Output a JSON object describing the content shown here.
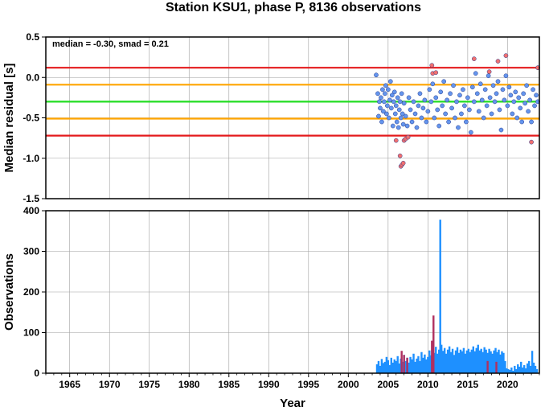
{
  "chart_data": [
    {
      "type": "scatter",
      "title": "Station KSU1, phase P, 8136 observations",
      "ylabel": "Median residual [s]",
      "annotation": "median = -0.30, smad = 0.21",
      "xlim": [
        1962,
        2024
      ],
      "ylim": [
        -1.5,
        0.5
      ],
      "yticks": [
        0.5,
        0.0,
        -0.5,
        -1.0,
        -1.5
      ],
      "ytick_labels": [
        "0.5",
        "0.0",
        "-0.5",
        "-1.0",
        "-1.5"
      ],
      "grid": true,
      "reference_lines": [
        {
          "y": 0.12,
          "color": "#e41a1c"
        },
        {
          "y": -0.09,
          "color": "#ffa500"
        },
        {
          "y": -0.3,
          "color": "#22dd22"
        },
        {
          "y": -0.51,
          "color": "#ffa500"
        },
        {
          "y": -0.72,
          "color": "#e41a1c"
        }
      ],
      "series": [
        {
          "color": "#6495ed",
          "points": [
            [
              2003.5,
              0.03
            ],
            [
              2003.7,
              -0.2
            ],
            [
              2003.8,
              -0.48
            ],
            [
              2003.9,
              -0.3
            ],
            [
              2004.0,
              -0.38
            ],
            [
              2004.1,
              -0.25
            ],
            [
              2004.2,
              -0.55
            ],
            [
              2004.3,
              -0.15
            ],
            [
              2004.4,
              -0.42
            ],
            [
              2004.5,
              -0.3
            ],
            [
              2004.6,
              -0.2
            ],
            [
              2004.7,
              -0.1
            ],
            [
              2004.8,
              -0.45
            ],
            [
              2004.9,
              -0.35
            ],
            [
              2005.0,
              -0.15
            ],
            [
              2005.1,
              -0.5
            ],
            [
              2005.2,
              -0.28
            ],
            [
              2005.3,
              -0.05
            ],
            [
              2005.4,
              -0.38
            ],
            [
              2005.5,
              -0.22
            ],
            [
              2005.6,
              -0.6
            ],
            [
              2005.7,
              -0.3
            ],
            [
              2005.8,
              -0.18
            ],
            [
              2005.9,
              -0.45
            ],
            [
              2006.0,
              -0.35
            ],
            [
              2006.1,
              -0.55
            ],
            [
              2006.2,
              -0.25
            ],
            [
              2006.3,
              -0.62
            ],
            [
              2006.4,
              -0.4
            ],
            [
              2006.5,
              -0.3
            ],
            [
              2006.6,
              -0.5
            ],
            [
              2006.7,
              -0.2
            ],
            [
              2006.8,
              -0.45
            ],
            [
              2006.9,
              -0.58
            ],
            [
              2007.0,
              -0.32
            ],
            [
              2007.2,
              -0.48
            ],
            [
              2007.4,
              -0.6
            ],
            [
              2007.6,
              -0.25
            ],
            [
              2007.8,
              -0.4
            ],
            [
              2008.0,
              -0.55
            ],
            [
              2008.2,
              -0.3
            ],
            [
              2008.4,
              -0.45
            ],
            [
              2008.6,
              -0.62
            ],
            [
              2008.8,
              -0.35
            ],
            [
              2009.0,
              -0.2
            ],
            [
              2009.2,
              -0.5
            ],
            [
              2009.4,
              -0.38
            ],
            [
              2009.6,
              -0.28
            ],
            [
              2009.8,
              -0.55
            ],
            [
              2010.0,
              -0.42
            ],
            [
              2010.2,
              -0.15
            ],
            [
              2010.4,
              -0.3
            ],
            [
              2010.6,
              -0.08
            ],
            [
              2010.8,
              -0.5
            ],
            [
              2011.0,
              -0.25
            ],
            [
              2011.2,
              -0.4
            ],
            [
              2011.4,
              -0.6
            ],
            [
              2011.6,
              -0.18
            ],
            [
              2011.8,
              -0.35
            ],
            [
              2012.0,
              -0.05
            ],
            [
              2012.2,
              -0.45
            ],
            [
              2012.4,
              -0.28
            ],
            [
              2012.6,
              -0.55
            ],
            [
              2012.8,
              -0.2
            ],
            [
              2013.0,
              -0.38
            ],
            [
              2013.2,
              -0.1
            ],
            [
              2013.4,
              -0.5
            ],
            [
              2013.6,
              -0.3
            ],
            [
              2013.8,
              -0.62
            ],
            [
              2014.0,
              -0.22
            ],
            [
              2014.2,
              -0.45
            ],
            [
              2014.4,
              -0.15
            ],
            [
              2014.6,
              -0.35
            ],
            [
              2014.8,
              -0.55
            ],
            [
              2015.0,
              -0.25
            ],
            [
              2015.2,
              -0.4
            ],
            [
              2015.4,
              -0.68
            ],
            [
              2015.6,
              -0.12
            ],
            [
              2015.8,
              -0.3
            ],
            [
              2016.0,
              0.05
            ],
            [
              2016.2,
              -0.2
            ],
            [
              2016.4,
              -0.42
            ],
            [
              2016.6,
              -0.08
            ],
            [
              2016.8,
              -0.28
            ],
            [
              2017.0,
              -0.5
            ],
            [
              2017.2,
              -0.15
            ],
            [
              2017.4,
              -0.35
            ],
            [
              2017.6,
              0.02
            ],
            [
              2017.8,
              -0.25
            ],
            [
              2018.0,
              -0.45
            ],
            [
              2018.2,
              -0.1
            ],
            [
              2018.4,
              -0.3
            ],
            [
              2018.6,
              -0.2
            ],
            [
              2018.8,
              -0.05
            ],
            [
              2019.0,
              -0.4
            ],
            [
              2019.2,
              -0.65
            ],
            [
              2019.4,
              -0.15
            ],
            [
              2019.6,
              -0.28
            ],
            [
              2019.8,
              0.02
            ],
            [
              2020.0,
              -0.35
            ],
            [
              2020.2,
              -0.12
            ],
            [
              2020.4,
              -0.22
            ],
            [
              2020.6,
              -0.45
            ],
            [
              2020.8,
              -0.3
            ],
            [
              2021.0,
              -0.18
            ],
            [
              2021.2,
              -0.5
            ],
            [
              2021.4,
              -0.25
            ],
            [
              2021.6,
              -0.38
            ],
            [
              2021.8,
              -0.55
            ],
            [
              2022.0,
              -0.2
            ],
            [
              2022.2,
              -0.32
            ],
            [
              2022.4,
              -0.1
            ],
            [
              2022.6,
              -0.42
            ],
            [
              2022.8,
              -0.28
            ],
            [
              2023.0,
              -0.55
            ],
            [
              2023.2,
              -0.15
            ],
            [
              2023.4,
              -0.35
            ],
            [
              2023.6,
              -0.22
            ],
            [
              2023.8,
              -0.3
            ]
          ]
        },
        {
          "color": "#f07070",
          "points": [
            [
              2006.0,
              -0.78
            ],
            [
              2006.5,
              -0.97
            ],
            [
              2006.6,
              -1.1
            ],
            [
              2006.75,
              -1.08
            ],
            [
              2006.9,
              -1.06
            ],
            [
              2007.0,
              -0.78
            ],
            [
              2007.2,
              -0.76
            ],
            [
              2007.5,
              -0.74
            ],
            [
              2010.5,
              0.15
            ],
            [
              2010.6,
              0.05
            ],
            [
              2011.0,
              0.06
            ],
            [
              2015.8,
              0.23
            ],
            [
              2017.7,
              0.07
            ],
            [
              2018.8,
              0.2
            ],
            [
              2019.8,
              0.27
            ],
            [
              2023.8,
              0.12
            ],
            [
              2023.0,
              -0.8
            ]
          ]
        }
      ]
    },
    {
      "type": "bar",
      "ylabel": "Observations",
      "xlabel": "Year",
      "xlim": [
        1962,
        2024
      ],
      "ylim": [
        0,
        400
      ],
      "yticks": [
        400,
        300,
        200,
        100,
        0
      ],
      "ytick_labels": [
        "400",
        "300",
        "200",
        "100",
        "0"
      ],
      "xticks": [
        1965,
        1970,
        1975,
        1980,
        1985,
        1990,
        1995,
        2000,
        2005,
        2010,
        2015,
        2020
      ],
      "xtick_labels": [
        "1965",
        "1970",
        "1975",
        "1980",
        "1985",
        "1990",
        "1995",
        "2000",
        "2005",
        "2010",
        "2015",
        "2020"
      ],
      "grid": true,
      "series": [
        {
          "color": "#1e90ff",
          "x": [
            2003.6,
            2003.8,
            2004.0,
            2004.2,
            2004.4,
            2004.6,
            2004.8,
            2005.0,
            2005.2,
            2005.4,
            2005.6,
            2005.8,
            2006.0,
            2006.2,
            2006.4,
            2006.6,
            2006.8,
            2007.0,
            2007.2,
            2007.4,
            2007.6,
            2007.8,
            2008.0,
            2008.2,
            2008.4,
            2008.6,
            2008.8,
            2009.0,
            2009.2,
            2009.4,
            2009.6,
            2009.8,
            2010.0,
            2010.2,
            2010.4,
            2010.6,
            2010.8,
            2011.0,
            2011.2,
            2011.4,
            2011.55,
            2011.7,
            2011.9,
            2012.1,
            2012.3,
            2012.5,
            2012.7,
            2012.9,
            2013.1,
            2013.3,
            2013.5,
            2013.7,
            2013.9,
            2014.1,
            2014.3,
            2014.5,
            2014.7,
            2014.9,
            2015.1,
            2015.3,
            2015.5,
            2015.7,
            2015.9,
            2016.1,
            2016.3,
            2016.5,
            2016.7,
            2016.9,
            2017.1,
            2017.3,
            2017.5,
            2017.7,
            2017.9,
            2018.1,
            2018.3,
            2018.5,
            2018.7,
            2018.9,
            2019.1,
            2019.3,
            2019.5,
            2019.7,
            2019.9,
            2020.1,
            2020.3,
            2020.5,
            2020.7,
            2020.9,
            2021.1,
            2021.3,
            2021.5,
            2021.7,
            2021.9,
            2022.1,
            2022.3,
            2022.5,
            2022.7,
            2022.9,
            2023.1,
            2023.3,
            2023.5,
            2023.7
          ],
          "values": [
            22,
            30,
            18,
            35,
            25,
            28,
            40,
            32,
            20,
            38,
            26,
            34,
            30,
            42,
            24,
            36,
            28,
            45,
            30,
            38,
            26,
            40,
            34,
            48,
            28,
            36,
            42,
            30,
            52,
            38,
            46,
            34,
            40,
            56,
            44,
            60,
            50,
            65,
            48,
            58,
            378,
            70,
            55,
            62,
            48,
            58,
            66,
            52,
            60,
            45,
            56,
            64,
            50,
            58,
            54,
            62,
            48,
            56,
            60,
            52,
            58,
            66,
            54,
            62,
            70,
            56,
            60,
            52,
            64,
            58,
            50,
            60,
            54,
            48,
            56,
            62,
            52,
            58,
            46,
            54,
            50,
            30,
            12,
            10,
            8,
            14,
            6,
            18,
            10,
            22,
            16,
            28,
            14,
            20,
            12,
            24,
            30,
            18,
            55,
            26,
            18,
            10
          ]
        },
        {
          "color": "#b03060",
          "x": [
            2006.7,
            2007.0,
            2007.4,
            2010.5,
            2010.7,
            2017.5,
            2018.6
          ],
          "values": [
            55,
            45,
            38,
            80,
            142,
            30,
            28
          ]
        }
      ]
    }
  ]
}
